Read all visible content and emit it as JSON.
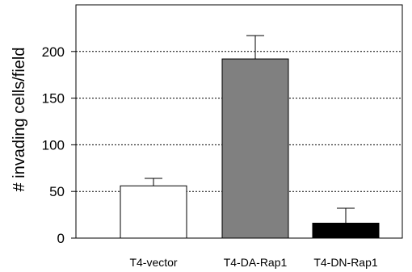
{
  "chart_data": {
    "type": "bar",
    "title": "",
    "xlabel": "",
    "ylabel": "# invading cells/field",
    "categories": [
      "T4-vector",
      "T4-DA-Rap1",
      "T4-DN-Rap1"
    ],
    "values": [
      56,
      192,
      16
    ],
    "error": [
      8,
      25,
      16
    ],
    "ylim": [
      0,
      250
    ],
    "yticks": [
      0,
      50,
      100,
      150,
      200
    ],
    "grid": "horizontal dotted at 50, 100, 150, 200",
    "bar_colors": [
      "#ffffff",
      "#808080",
      "#000000"
    ],
    "error_bars": "upper only"
  }
}
